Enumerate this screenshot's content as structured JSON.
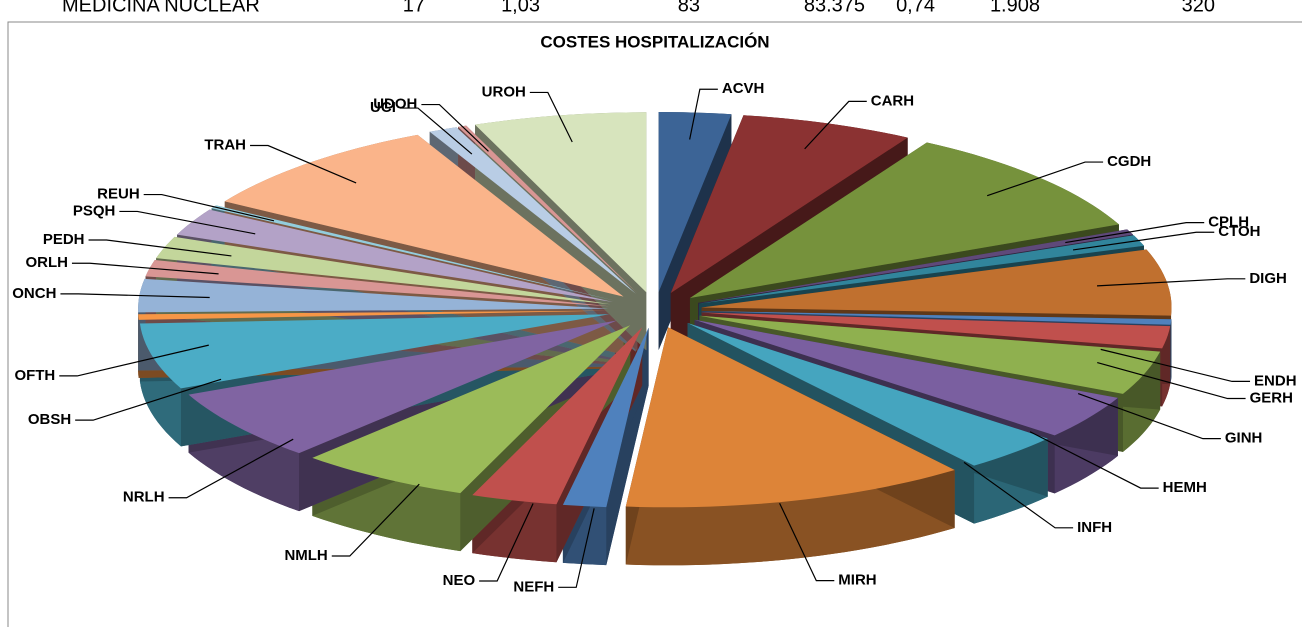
{
  "table": {
    "rows": [
      [
        "MEDICINA NUCLEAR",
        "17",
        "1,03",
        "83",
        "83.375",
        "0,74",
        "1.908",
        "320"
      ]
    ]
  },
  "chart_data": {
    "type": "pie",
    "title": "COSTES HOSPITALIZACIÓN",
    "categories": [
      "ACVH",
      "CARH",
      "CGDH",
      "CPLH",
      "CTOH",
      "DIGH",
      "ENDH",
      "GERH",
      "GINH",
      "HEMH",
      "INFH",
      "MIRH",
      "NEFH",
      "NEO",
      "NMLH",
      "NRLH",
      "OBSH",
      "OFTH",
      "ONCH",
      "ORLH",
      "PEDH",
      "PSQH",
      "REUH",
      "TRAH",
      "UCI",
      "UDOH",
      "UROH"
    ],
    "values": [
      2.5,
      6,
      10,
      0.5,
      1,
      6,
      0.5,
      2,
      4,
      4,
      3.5,
      12,
      1.5,
      3,
      6,
      6.5,
      6,
      0.5,
      3,
      1.5,
      2,
      2.5,
      0.3,
      9,
      1,
      0.3,
      6
    ],
    "colors": [
      "#3c6496",
      "#8b3232",
      "#76923c",
      "#5f497a",
      "#31859c",
      "#c0702f",
      "#4f81bd",
      "#c0504d",
      "#8fb04f",
      "#7a5fa0",
      "#45a5bf",
      "#dd8438",
      "#4f81bd",
      "#c0504d",
      "#9bbb59",
      "#8064a2",
      "#4bacc6",
      "#f79646",
      "#95b3d7",
      "#d99694",
      "#c3d69b",
      "#b3a2c7",
      "#93cddd",
      "#fab48a",
      "#b9cde5",
      "#d99694",
      "#d7e4bd"
    ]
  }
}
